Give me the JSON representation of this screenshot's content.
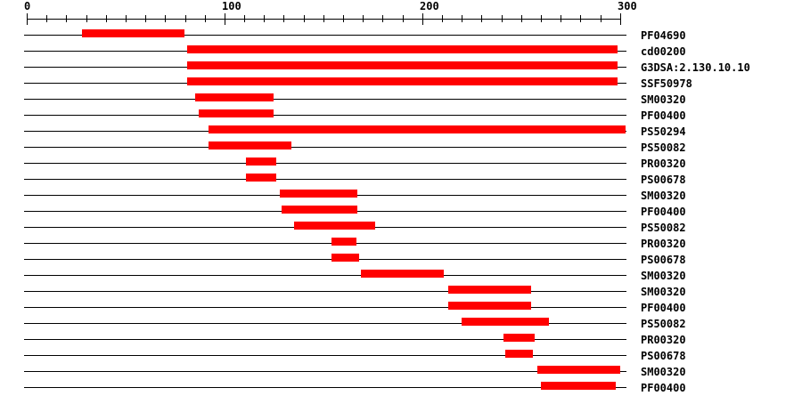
{
  "colors": {
    "bar": "#ff0000",
    "axis": "#000000",
    "text": "#000000",
    "background": "#ffffff"
  },
  "chart_data": {
    "type": "bar",
    "subtype": "horizontal-range-bars-domain-hits",
    "title": "",
    "xlabel": "",
    "ylabel": "",
    "grid": false,
    "legend_position": "right-row-labels",
    "axis": {
      "min": 0,
      "max": 300,
      "minor_tick_step": 10,
      "major_ticks": [
        0,
        100,
        200,
        300
      ],
      "tick_labels": [
        "0",
        "100",
        "200",
        "300"
      ]
    },
    "rows": [
      {
        "label": "PF04690",
        "start": 28,
        "end": 80
      },
      {
        "label": "cd00200",
        "start": 81,
        "end": 299
      },
      {
        "label": "G3DSA:2.130.10.10",
        "start": 81,
        "end": 299
      },
      {
        "label": "SSF50978",
        "start": 81,
        "end": 299
      },
      {
        "label": "SM00320",
        "start": 85,
        "end": 125
      },
      {
        "label": "PF00400",
        "start": 87,
        "end": 125
      },
      {
        "label": "PS50294",
        "start": 92,
        "end": 303
      },
      {
        "label": "PS50082",
        "start": 92,
        "end": 134
      },
      {
        "label": "PR00320",
        "start": 111,
        "end": 126
      },
      {
        "label": "PS00678",
        "start": 111,
        "end": 126
      },
      {
        "label": "SM00320",
        "start": 128,
        "end": 167
      },
      {
        "label": "PF00400",
        "start": 129,
        "end": 167
      },
      {
        "label": "PS50082",
        "start": 135,
        "end": 176
      },
      {
        "label": "PR00320",
        "start": 154,
        "end": 167
      },
      {
        "label": "PS00678",
        "start": 154,
        "end": 168
      },
      {
        "label": "SM00320",
        "start": 169,
        "end": 211
      },
      {
        "label": "SM00320",
        "start": 213,
        "end": 255
      },
      {
        "label": "PF00400",
        "start": 213,
        "end": 255
      },
      {
        "label": "PS50082",
        "start": 220,
        "end": 264
      },
      {
        "label": "PR00320",
        "start": 241,
        "end": 257
      },
      {
        "label": "PS00678",
        "start": 242,
        "end": 256
      },
      {
        "label": "SM00320",
        "start": 258,
        "end": 300
      },
      {
        "label": "PF00400",
        "start": 260,
        "end": 298
      }
    ]
  }
}
